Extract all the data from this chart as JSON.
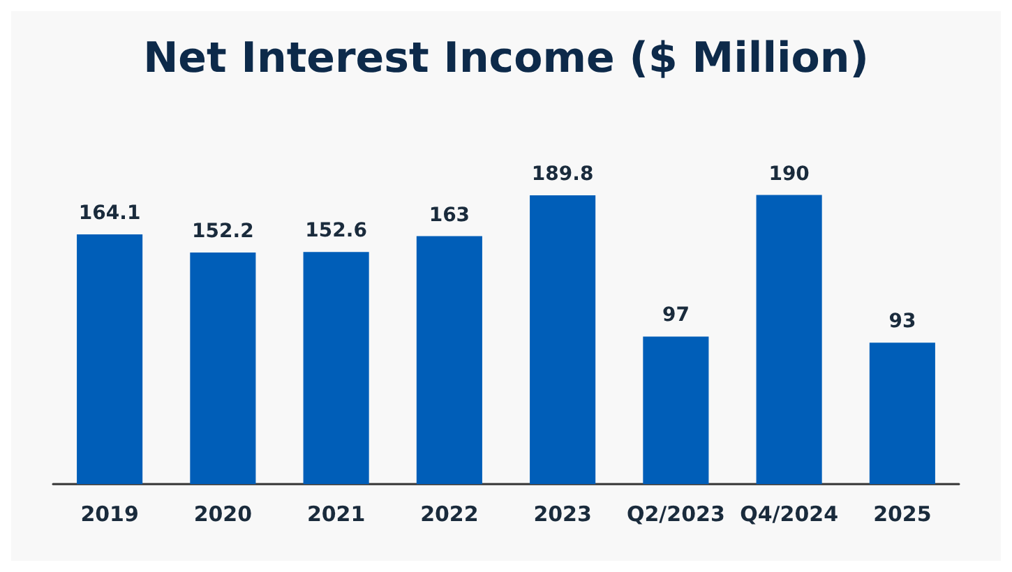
{
  "chart_data": {
    "type": "bar",
    "title": "Net Interest Income ($ Million)",
    "categories": [
      "2019",
      "2020",
      "2021",
      "2022",
      "2023",
      "Q2/2023",
      "Q4/2024",
      "2025"
    ],
    "values": [
      164.1,
      152.2,
      152.6,
      163,
      189.8,
      97,
      190,
      93
    ],
    "color": "#005eb8",
    "data_labels": true
  }
}
